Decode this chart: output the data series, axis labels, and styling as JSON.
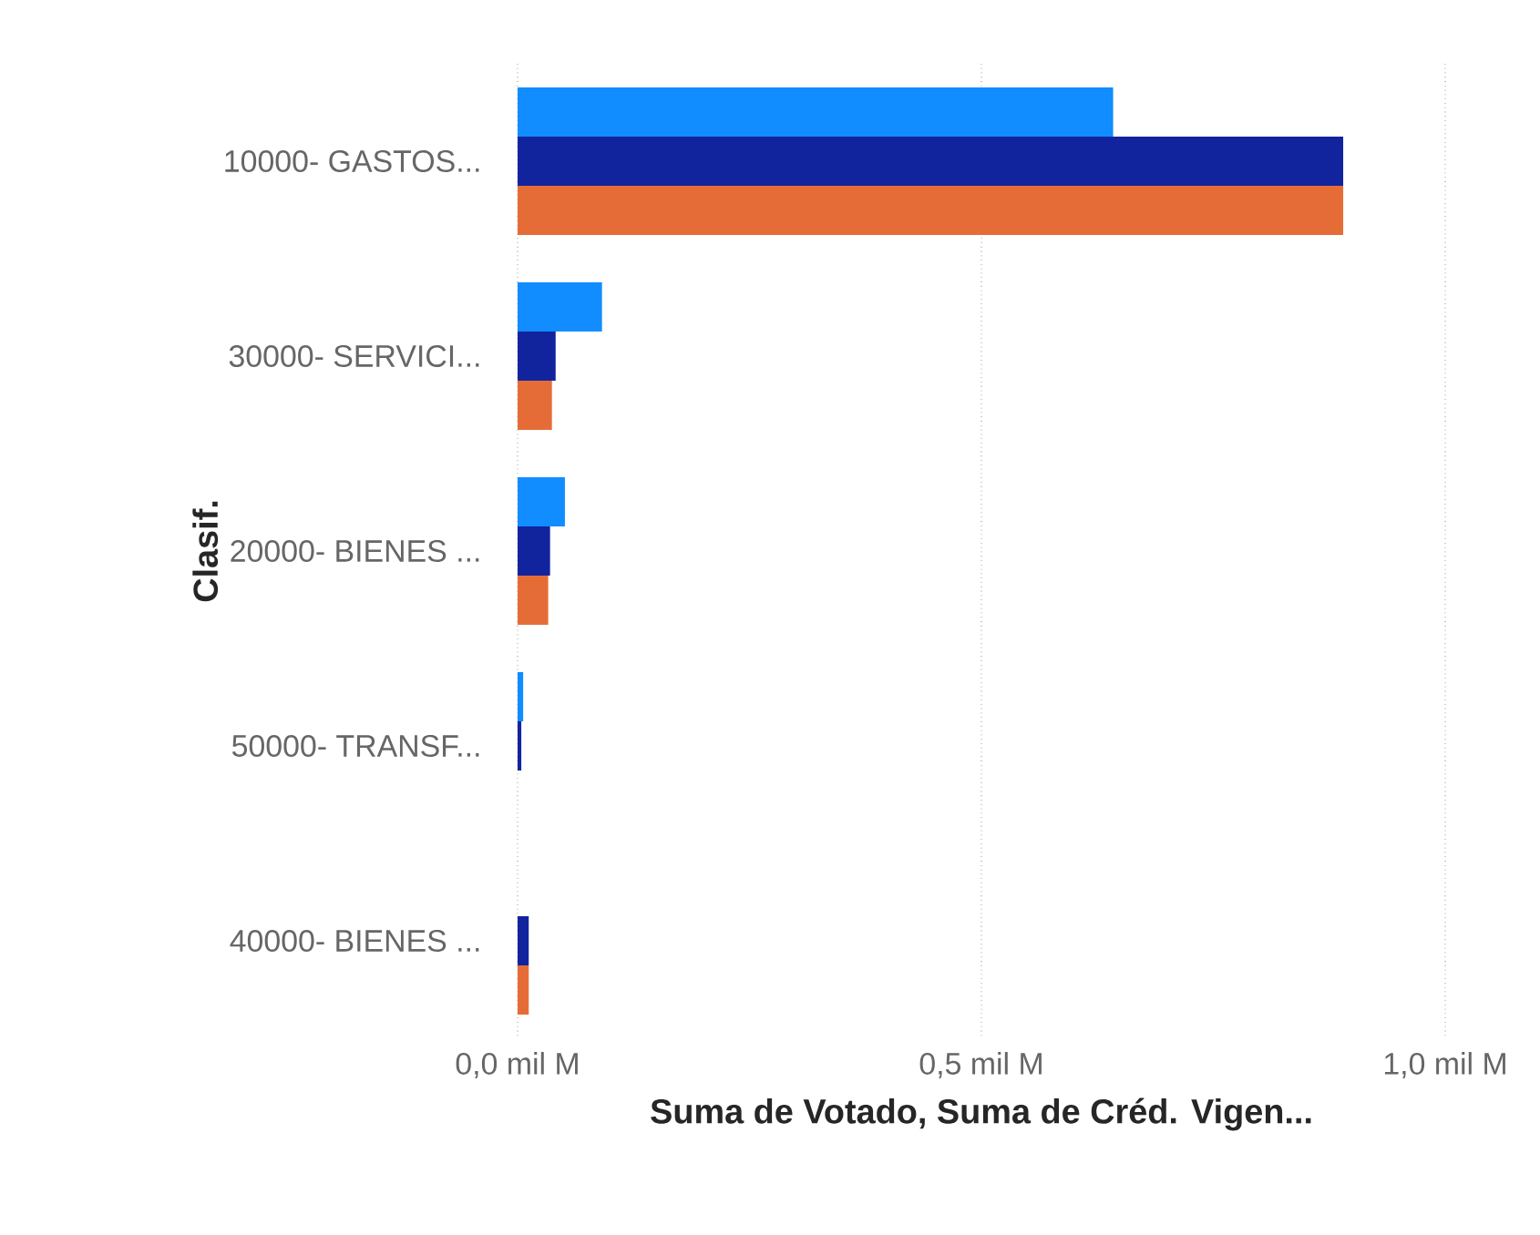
{
  "chart_data": {
    "type": "bar",
    "orientation": "horizontal",
    "categories": [
      "10000- GASTOS...",
      "30000- SERVICI...",
      "20000- BIENES ...",
      "50000- TRANSF...",
      "40000- BIENES ..."
    ],
    "series": [
      {
        "color": "#118dff",
        "values": [
          0.642,
          0.091,
          0.051,
          0.006,
          null
        ]
      },
      {
        "color": "#12239e",
        "values": [
          0.89,
          0.041,
          0.035,
          0.004,
          0.012
        ]
      },
      {
        "color": "#e66c37",
        "values": [
          0.89,
          0.037,
          0.033,
          null,
          0.012
        ]
      }
    ],
    "xlim": [
      0,
      1.0
    ],
    "xticks": [
      {
        "value": 0,
        "label": "0,0 mil M"
      },
      {
        "value": 0.5,
        "label": "0,5 mil M"
      },
      {
        "value": 1.0,
        "label": "1,0 mil M"
      }
    ],
    "xlabel": "Suma de Votado, Suma de Créd. Vigen...",
    "ylabel": "Clasif.",
    "grid": "x"
  }
}
